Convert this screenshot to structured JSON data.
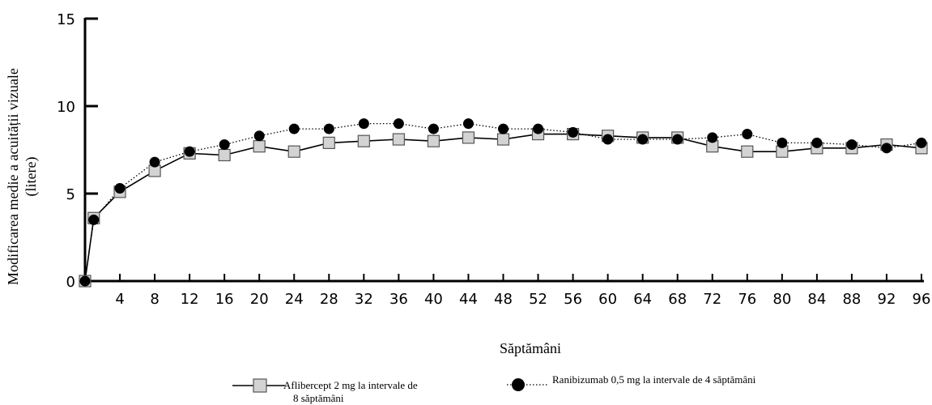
{
  "chart_data": {
    "type": "line",
    "xlabel": "Săptămâni",
    "ylabel_line1": "Modificarea medie a acuității vizuale",
    "ylabel_line2": "(litere)",
    "xlim": [
      0,
      96
    ],
    "ylim": [
      0,
      15
    ],
    "x_ticks": [
      4,
      8,
      12,
      16,
      20,
      24,
      28,
      32,
      36,
      40,
      44,
      48,
      52,
      56,
      60,
      64,
      68,
      72,
      76,
      80,
      84,
      88,
      92,
      96
    ],
    "y_ticks": [
      0,
      5,
      10,
      15
    ],
    "grid": false,
    "legend_position": "bottom",
    "series": [
      {
        "name": "Aflibercept 2 mg la intervale de 8 săptămâni",
        "name_line1": "Aflibercept 2 mg la intervale de",
        "name_line2": "8 săptămâni",
        "marker": "square",
        "line_style": "solid",
        "color": "#000000",
        "marker_fill": "#d3d3d3",
        "x": [
          0,
          1,
          4,
          8,
          12,
          16,
          20,
          24,
          28,
          32,
          36,
          40,
          44,
          48,
          52,
          56,
          60,
          64,
          68,
          72,
          76,
          80,
          84,
          88,
          92,
          96
        ],
        "y": [
          0,
          3.6,
          5.1,
          6.3,
          7.3,
          7.2,
          7.7,
          7.4,
          7.9,
          8.0,
          8.1,
          8.0,
          8.2,
          8.1,
          8.4,
          8.4,
          8.3,
          8.2,
          8.2,
          7.7,
          7.4,
          7.4,
          7.6,
          7.6,
          7.8,
          7.6
        ]
      },
      {
        "name": "Ranibizumab 0,5 mg la intervale de 4 săptămâni",
        "marker": "circle",
        "line_style": "dotted",
        "color": "#000000",
        "marker_fill": "#000000",
        "x": [
          0,
          1,
          4,
          8,
          12,
          16,
          20,
          24,
          28,
          32,
          36,
          40,
          44,
          48,
          52,
          56,
          60,
          64,
          68,
          72,
          76,
          80,
          84,
          88,
          92,
          96
        ],
        "y": [
          0,
          3.5,
          5.3,
          6.8,
          7.4,
          7.8,
          8.3,
          8.7,
          8.7,
          9.0,
          9.0,
          8.7,
          9.0,
          8.7,
          8.7,
          8.5,
          8.1,
          8.1,
          8.1,
          8.2,
          8.4,
          7.9,
          7.9,
          7.8,
          7.6,
          7.9
        ]
      }
    ]
  }
}
